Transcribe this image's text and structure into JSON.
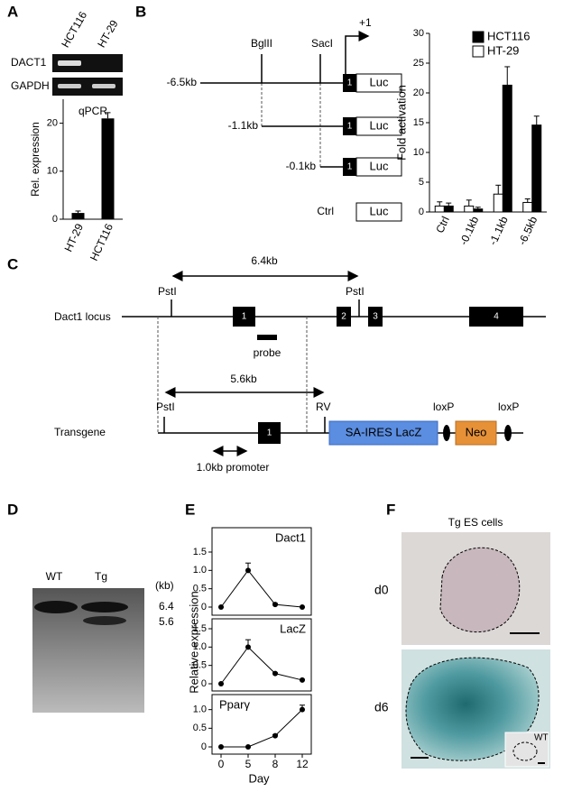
{
  "panel_labels": [
    "A",
    "B",
    "C",
    "D",
    "E",
    "F"
  ],
  "panel_a": {
    "lanes": [
      "HCT116",
      "HT-29"
    ],
    "rows": [
      "DACT1",
      "GAPDH"
    ]
  },
  "panel_b": {
    "sites": [
      "BglII",
      "SacI"
    ],
    "tss": "+1",
    "constructs": [
      "-6.5kb",
      "-1.1kb",
      "-0.1kb",
      "Ctrl"
    ],
    "exon": "1",
    "reporter": "Luc"
  },
  "panel_c": {
    "rows": [
      "Dact1 locus",
      "Transgene"
    ],
    "site": "PstI",
    "rv": "RV",
    "exons": [
      "1",
      "2",
      "3",
      "4"
    ],
    "locus_size": "6.4kb",
    "transgene_size": "5.6kb",
    "probe": "probe",
    "cassette": "SA-IRES LacZ",
    "neo": "Neo",
    "loxp": "loxP",
    "promoter": "1.0kb promoter"
  },
  "panel_d": {
    "lanes": [
      "WT",
      "Tg"
    ],
    "unit": "(kb)",
    "bands": [
      "6.4",
      "5.6"
    ]
  },
  "panel_e": {
    "ylabel": "Relative expression",
    "xlabel": "Day"
  },
  "panel_f": {
    "title": "Tg ES cells",
    "days": [
      "d0",
      "d6"
    ],
    "inset": "WT"
  },
  "chart_data": [
    {
      "type": "bar",
      "title": "qPCR",
      "ylabel": "Rel. expression",
      "categories": [
        "HT-29",
        "HCT116"
      ],
      "values": [
        1.3,
        21
      ],
      "errors": [
        0.4,
        1.2
      ],
      "color": "#000000",
      "ylim": [
        0,
        25
      ],
      "yticks": [
        0,
        10,
        20
      ]
    },
    {
      "type": "groupbar",
      "ylabel": "Fold activation",
      "categories": [
        "Ctrl",
        "-0.1kb",
        "-1.1kb",
        "-6.5kb"
      ],
      "series": [
        {
          "name": "HCT116",
          "color": "#000000",
          "values": [
            1,
            0.5,
            21.3,
            14.6
          ],
          "errors": [
            0.5,
            0.3,
            3.1,
            1.5
          ]
        },
        {
          "name": "HT-29",
          "color": "#ffffff",
          "values": [
            1,
            1,
            3,
            1.6
          ],
          "errors": [
            0.7,
            1,
            1.5,
            0.6
          ]
        }
      ],
      "ylim": [
        0,
        30
      ],
      "yticks": [
        0,
        5,
        10,
        15,
        20,
        25,
        30
      ],
      "legend": "top-right"
    },
    {
      "type": "line",
      "title": "Dact1",
      "values": [
        0,
        1,
        0.07,
        0
      ],
      "errors": [
        0,
        0.2,
        0.03,
        0
      ],
      "ylim": [
        0,
        1.5
      ],
      "yticks": [
        0,
        0.5,
        {
          "value": 1,
          "label": "1.0"
        },
        1.5
      ]
    },
    {
      "type": "line",
      "title": "LacZ",
      "values": [
        0,
        1,
        0.28,
        0.1
      ],
      "errors": [
        0,
        0.2,
        0.02,
        0.02
      ],
      "ylim": [
        0,
        1.5
      ],
      "yticks": [
        0,
        0.5,
        {
          "value": 1,
          "label": "1.0"
        },
        1.5
      ]
    },
    {
      "type": "line",
      "title": "Pparγ",
      "categories": [
        "0",
        "5",
        "8",
        "12"
      ],
      "values": [
        0,
        0,
        0.3,
        1
      ],
      "errors": [
        0,
        0,
        0.03,
        0.12
      ],
      "ylim": [
        0,
        1.5
      ],
      "yticks": [
        0,
        0.5,
        {
          "value": 1,
          "label": "1.0"
        }
      ]
    }
  ]
}
